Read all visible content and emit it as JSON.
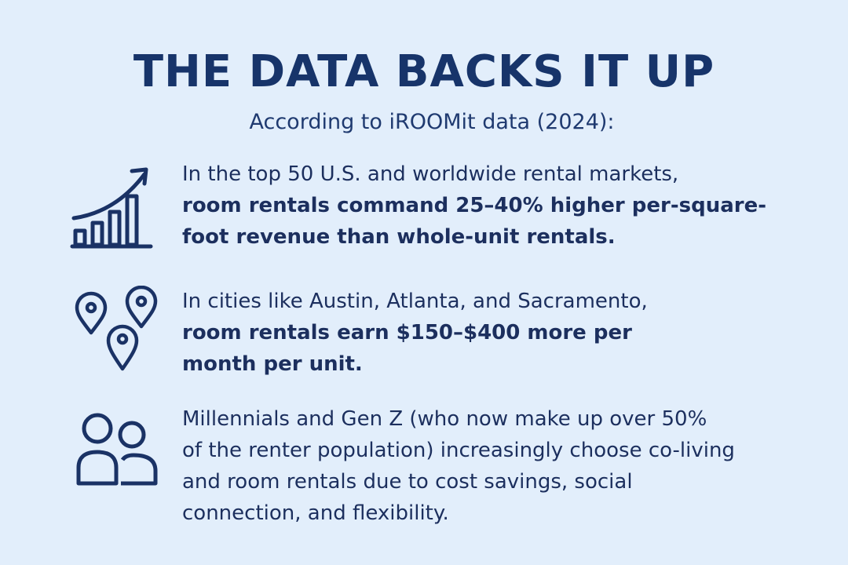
{
  "header": {
    "title": "THE DATA BACKS IT UP",
    "subtitle": "According to iROOMit data (2024):"
  },
  "items": [
    {
      "icon": "rising-bar-chart-icon",
      "lines": [
        "In the top 50 U.S. and worldwide rental markets,",
        "room rentals command 25–40% higher per-square-",
        "foot revenue than whole-unit rentals."
      ]
    },
    {
      "icon": "location-pins-icon",
      "lines": [
        "In cities like Austin, Atlanta, and Sacramento,",
        "room rentals earn $150–$400 more per",
        "month per unit."
      ]
    },
    {
      "icon": "people-group-icon",
      "lines": [
        "Millennials and Gen Z (who now make up over 50%",
        "of the renter population) increasingly choose co-living",
        "and room rentals due to cost savings, social",
        "connection, and flexibility."
      ]
    }
  ],
  "colors": {
    "background": "#e2eefb",
    "title": "#17346a",
    "text": "#1c2f5e",
    "icon": "#1a3265"
  }
}
